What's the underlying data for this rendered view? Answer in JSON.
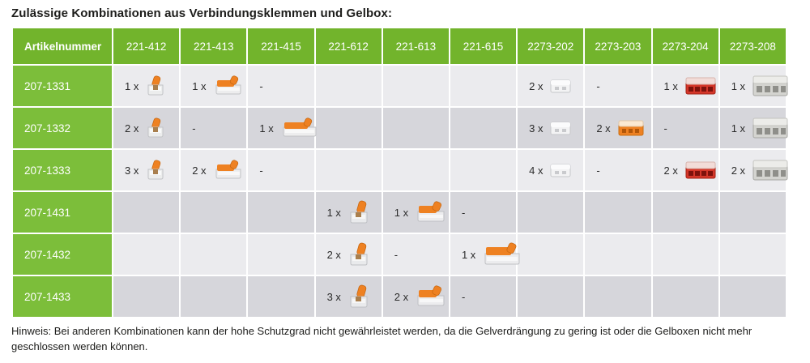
{
  "title": "Zulässige Kombinationen aus Verbindungsklemmen und Gelbox:",
  "note": "Hinweis: Bei anderen Kombinationen kann der hohe Schutzgrad nicht gewährleistet werden, da die Gelverdrängung zu gering ist oder die Gelboxen nicht mehr geschlossen werden können.",
  "colors": {
    "header_green": "#72b42c",
    "label_green": "#7cbe3a",
    "row_light": "#ebebee",
    "row_dark": "#d6d6db",
    "wago_orange": "#ee8122",
    "connector_red": "#d5372a"
  },
  "table": {
    "columns": [
      "Artikelnummer",
      "221-412",
      "221-413",
      "221-415",
      "221-612",
      "221-613",
      "221-615",
      "2273-202",
      "2273-203",
      "2273-204",
      "2273-208"
    ],
    "rows": [
      {
        "label": "207-1331",
        "cells": [
          {
            "qty": "1 x",
            "icon": "connector-221-412-icon"
          },
          {
            "qty": "1 x",
            "icon": "connector-221-413-icon"
          },
          {
            "text": "-"
          },
          {},
          {},
          {},
          {
            "qty": "2 x",
            "icon": "connector-2273-202-icon"
          },
          {
            "text": "-"
          },
          {
            "qty": "1 x",
            "icon": "connector-2273-204-icon"
          },
          {
            "qty": "1 x",
            "icon": "connector-2273-208-icon"
          }
        ]
      },
      {
        "label": "207-1332",
        "cells": [
          {
            "qty": "2 x",
            "icon": "connector-221-412-icon"
          },
          {
            "text": "-"
          },
          {
            "qty": "1 x",
            "icon": "connector-221-415-icon"
          },
          {},
          {},
          {},
          {
            "qty": "3 x",
            "icon": "connector-2273-202-icon"
          },
          {
            "qty": "2 x",
            "icon": "connector-2273-203-icon"
          },
          {
            "text": "-"
          },
          {
            "qty": "1 x",
            "icon": "connector-2273-208-icon"
          }
        ]
      },
      {
        "label": "207-1333",
        "cells": [
          {
            "qty": "3 x",
            "icon": "connector-221-412-icon"
          },
          {
            "qty": "2 x",
            "icon": "connector-221-413-icon"
          },
          {
            "text": "-"
          },
          {},
          {},
          {},
          {
            "qty": "4 x",
            "icon": "connector-2273-202-icon"
          },
          {
            "text": "-"
          },
          {
            "qty": "2 x",
            "icon": "connector-2273-204-icon"
          },
          {
            "qty": "2 x",
            "icon": "connector-2273-208-icon"
          }
        ]
      },
      {
        "label": "207-1431",
        "cells": [
          {},
          {},
          {},
          {
            "qty": "1 x",
            "icon": "connector-221-612-icon"
          },
          {
            "qty": "1 x",
            "icon": "connector-221-613-icon"
          },
          {
            "text": "-"
          },
          {},
          {},
          {},
          {}
        ]
      },
      {
        "label": "207-1432",
        "cells": [
          {},
          {},
          {},
          {
            "qty": "2 x",
            "icon": "connector-221-612-icon"
          },
          {
            "text": "-"
          },
          {
            "qty": "1 x",
            "icon": "connector-221-615-icon"
          },
          {},
          {},
          {},
          {}
        ]
      },
      {
        "label": "207-1433",
        "cells": [
          {},
          {},
          {},
          {
            "qty": "3 x",
            "icon": "connector-221-612-icon"
          },
          {
            "qty": "2 x",
            "icon": "connector-221-613-icon"
          },
          {
            "text": "-"
          },
          {},
          {},
          {},
          {}
        ]
      }
    ]
  }
}
